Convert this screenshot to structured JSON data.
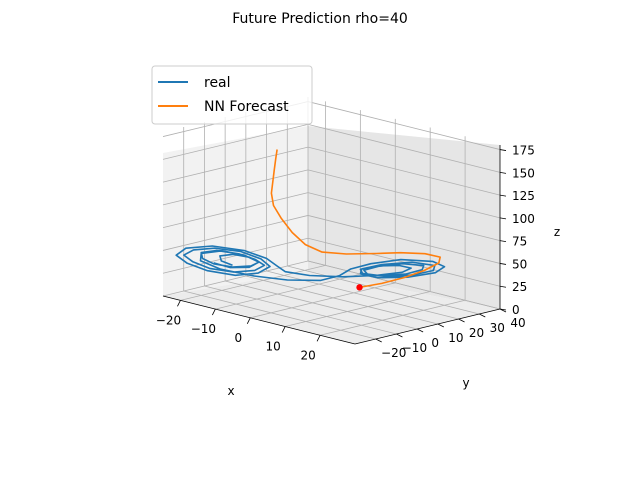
{
  "chart_data": {
    "type": "line3d",
    "title": "Future Prediction rho=40",
    "xlabel": "x",
    "ylabel": "y",
    "zlabel": "z",
    "x_ticks": [
      -20,
      -10,
      0,
      10,
      20
    ],
    "y_ticks": [
      -20,
      -10,
      0,
      10,
      20,
      30,
      40
    ],
    "z_ticks": [
      0,
      25,
      50,
      75,
      100,
      125,
      150,
      175
    ],
    "xlim": [
      -25,
      30
    ],
    "ylim": [
      -30,
      40
    ],
    "zlim": [
      0,
      180
    ],
    "legend": {
      "placement": "upper-left"
    },
    "grid": true,
    "series": [
      {
        "name": "real",
        "color": "#1f77b4",
        "points": [
          [
            -14,
            -15,
            36
          ],
          [
            -16,
            -17,
            40
          ],
          [
            -17,
            -16,
            44
          ],
          [
            -15,
            -13,
            46
          ],
          [
            -12,
            -10,
            44
          ],
          [
            -10,
            -9,
            40
          ],
          [
            -11,
            -11,
            36
          ],
          [
            -14,
            -15,
            34
          ],
          [
            -17,
            -19,
            37
          ],
          [
            -19,
            -21,
            42
          ],
          [
            -20,
            -20,
            47
          ],
          [
            -18,
            -16,
            49
          ],
          [
            -14,
            -12,
            47
          ],
          [
            -11,
            -9,
            42
          ],
          [
            -9,
            -8,
            37
          ],
          [
            -10,
            -11,
            32
          ],
          [
            -13,
            -16,
            30
          ],
          [
            -17,
            -21,
            33
          ],
          [
            -20,
            -24,
            39
          ],
          [
            -22,
            -25,
            45
          ],
          [
            -21,
            -22,
            50
          ],
          [
            -18,
            -17,
            52
          ],
          [
            -14,
            -11,
            49
          ],
          [
            -10,
            -8,
            43
          ],
          [
            -8,
            -7,
            36
          ],
          [
            -9,
            -11,
            30
          ],
          [
            -12,
            -17,
            28
          ],
          [
            -17,
            -22,
            31
          ],
          [
            -21,
            -25,
            37
          ],
          [
            -23,
            -27,
            45
          ],
          [
            -22,
            -24,
            52
          ],
          [
            -18,
            -18,
            55
          ],
          [
            -13,
            -11,
            51
          ],
          [
            -9,
            -7,
            44
          ],
          [
            -7,
            -5,
            36
          ],
          [
            -6,
            -3,
            30
          ],
          [
            -2,
            2,
            27
          ],
          [
            4,
            8,
            28
          ],
          [
            10,
            14,
            32
          ],
          [
            15,
            18,
            38
          ],
          [
            17,
            19,
            44
          ],
          [
            16,
            15,
            48
          ],
          [
            12,
            11,
            46
          ],
          [
            9,
            8,
            41
          ],
          [
            9,
            9,
            36
          ],
          [
            12,
            13,
            34
          ],
          [
            16,
            18,
            37
          ],
          [
            19,
            21,
            43
          ],
          [
            20,
            20,
            49
          ],
          [
            17,
            15,
            51
          ],
          [
            13,
            10,
            47
          ],
          [
            10,
            8,
            41
          ],
          [
            10,
            10,
            35
          ],
          [
            13,
            15,
            33
          ],
          [
            17,
            20,
            36
          ],
          [
            21,
            23,
            43
          ],
          [
            22,
            22,
            50
          ],
          [
            19,
            16,
            54
          ],
          [
            14,
            10,
            50
          ],
          [
            10,
            7,
            43
          ],
          [
            9,
            8,
            36
          ],
          [
            11,
            13,
            31
          ],
          [
            16,
            19,
            33
          ],
          [
            21,
            24,
            40
          ],
          [
            23,
            25,
            48
          ],
          [
            22,
            21,
            55
          ],
          [
            17,
            14,
            56
          ],
          [
            12,
            8,
            50
          ],
          [
            8,
            5,
            42
          ],
          [
            6,
            3,
            34
          ],
          [
            3,
            -1,
            28
          ],
          [
            -3,
            -7,
            26
          ],
          [
            -9,
            -13,
            28
          ],
          [
            -15,
            -19,
            33
          ],
          [
            -19,
            -22,
            40
          ],
          [
            -20,
            -20,
            46
          ],
          [
            -17,
            -15,
            49
          ],
          [
            -13,
            -11,
            46
          ],
          [
            -10,
            -9,
            40
          ],
          [
            -11,
            -12,
            35
          ],
          [
            -14,
            -16,
            34
          ],
          [
            -17,
            -19,
            38
          ]
        ]
      },
      {
        "name": "NN Forecast",
        "color": "#ff7f0e",
        "points": [
          [
            4,
            16,
            12
          ],
          [
            8,
            20,
            18
          ],
          [
            12,
            24,
            26
          ],
          [
            16,
            27,
            36
          ],
          [
            19,
            29,
            46
          ],
          [
            20,
            28,
            54
          ],
          [
            18,
            24,
            58
          ],
          [
            14,
            19,
            58
          ],
          [
            10,
            14,
            56
          ],
          [
            5,
            8,
            54
          ],
          [
            1,
            3,
            55
          ],
          [
            -2,
            0,
            62
          ],
          [
            -4,
            -3,
            75
          ],
          [
            -6,
            -5,
            90
          ],
          [
            -7,
            -7,
            104
          ],
          [
            -7,
            -8,
            118
          ],
          [
            -6,
            -9,
            132
          ],
          [
            -5,
            -10,
            146
          ],
          [
            -4,
            -11,
            160
          ],
          [
            -3,
            -12,
            172
          ]
        ]
      }
    ],
    "start_marker": {
      "color": "#ff0000",
      "point": [
        4,
        16,
        12
      ]
    }
  }
}
